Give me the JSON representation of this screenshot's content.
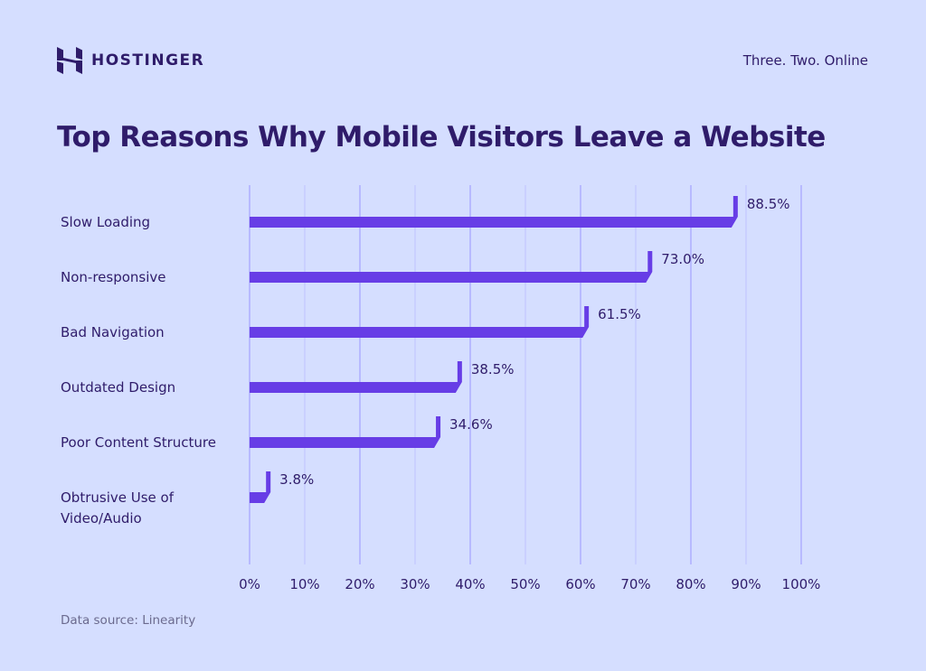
{
  "brand": {
    "name": "HOSTINGER",
    "tagline": "Three. Two. Online"
  },
  "source": "Data source: Linearity",
  "colors": {
    "background": "#d5deff",
    "bar": "#673de6",
    "text": "#2f1c6a",
    "grid": "#a9a6ff"
  },
  "chart_data": {
    "type": "bar",
    "orientation": "horizontal",
    "title": "Top Reasons Why Mobile Visitors Leave a Website",
    "categories": [
      [
        "Slow Loading"
      ],
      [
        "Non-responsive"
      ],
      [
        "Bad Navigation"
      ],
      [
        "Outdated Design"
      ],
      [
        "Poor Content Structure"
      ],
      [
        "Obtrusive Use of",
        "Video/Audio"
      ]
    ],
    "values": [
      88.5,
      73.0,
      61.5,
      38.5,
      34.6,
      3.8
    ],
    "data_labels": [
      "88.5%",
      "73.0%",
      "61.5%",
      "38.5%",
      "34.6%",
      "3.8%"
    ],
    "xlim": [
      0,
      100
    ],
    "xticks": [
      "0%",
      "10%",
      "20%",
      "30%",
      "40%",
      "50%",
      "60%",
      "70%",
      "80%",
      "90%",
      "100%"
    ],
    "grid": "vertical",
    "legend": "none"
  }
}
